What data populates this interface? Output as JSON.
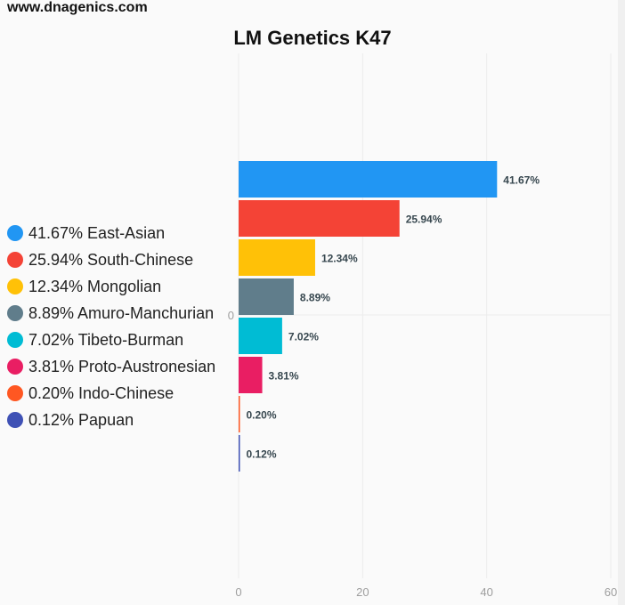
{
  "site": "www.dnagenics.com",
  "chart_data": {
    "type": "bar",
    "orientation": "horizontal",
    "title": "LM Genetics K47",
    "categories": [
      "East-Asian",
      "South-Chinese",
      "Mongolian",
      "Amuro-Manchurian",
      "Tibeto-Burman",
      "Proto-Austronesian",
      "Indo-Chinese",
      "Papuan"
    ],
    "values": [
      41.67,
      25.94,
      12.34,
      8.89,
      7.02,
      3.81,
      0.2,
      0.12
    ],
    "value_labels": [
      "41.67%",
      "25.94%",
      "12.34%",
      "8.89%",
      "7.02%",
      "3.81%",
      "0.20%",
      "0.12%"
    ],
    "legend_labels": [
      "41.67% East-Asian",
      "25.94% South-Chinese",
      "12.34% Mongolian",
      "8.89% Amuro-Manchurian",
      "7.02% Tibeto-Burman",
      "3.81% Proto-Austronesian",
      "0.20% Indo-Chinese",
      "0.12% Papuan"
    ],
    "colors": [
      "#2196f3",
      "#f44336",
      "#ffc107",
      "#607d8b",
      "#00bcd4",
      "#e91e63",
      "#ff5722",
      "#3f51b5"
    ],
    "xlim": [
      0,
      60
    ],
    "xticks": [
      "0",
      "20",
      "40",
      "60"
    ],
    "y_zero_label": "0",
    "legend_position": "left",
    "grid": true
  }
}
